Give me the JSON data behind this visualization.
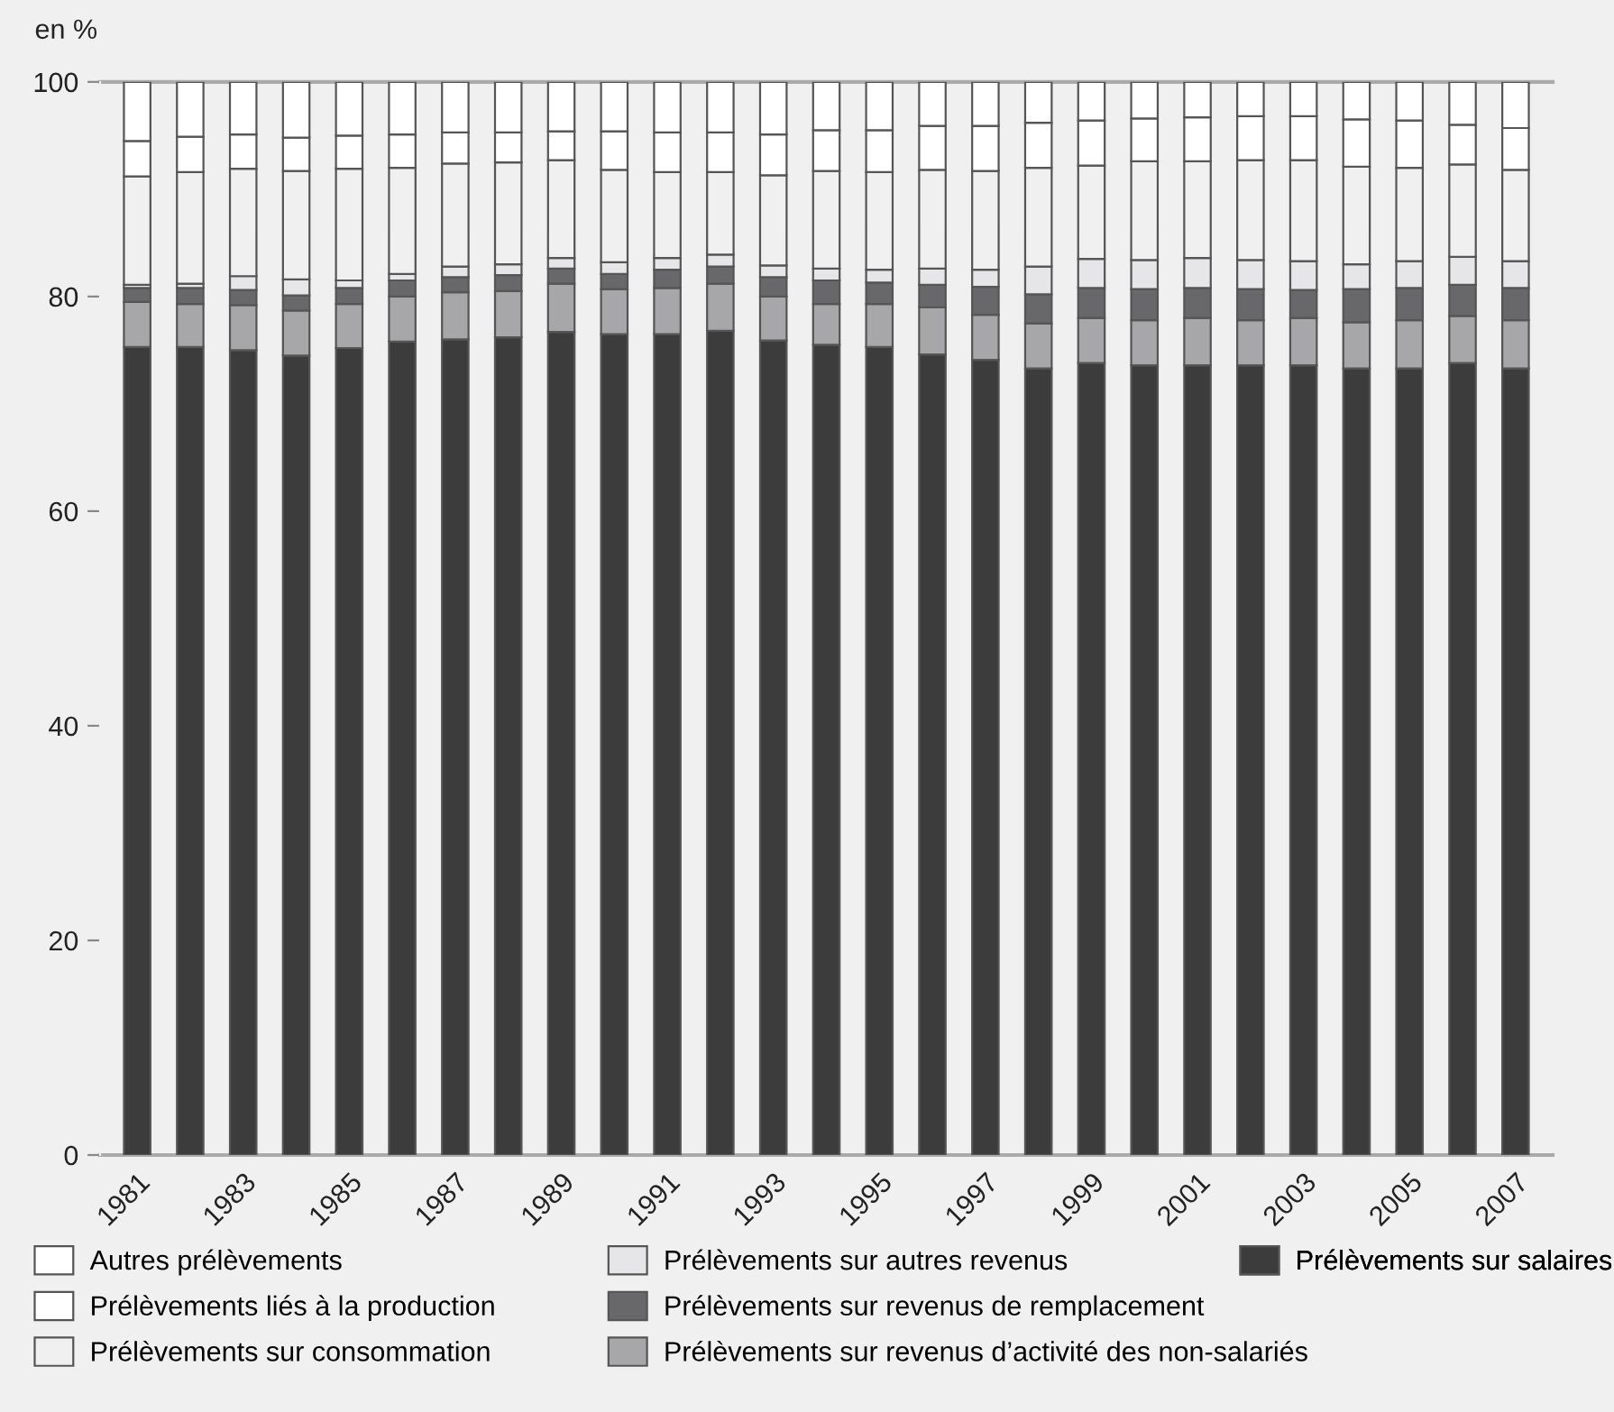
{
  "chart_data": {
    "type": "bar",
    "stacked": true,
    "ylabel": "en %",
    "categories": [
      "1981",
      null,
      "1983",
      null,
      "1985",
      null,
      "1987",
      null,
      "1989",
      null,
      "1991",
      null,
      "1993",
      null,
      "1995",
      null,
      "1997",
      null,
      "1999",
      null,
      "2001",
      null,
      "2003",
      null,
      "2005",
      null,
      "2007"
    ],
    "ylim": [
      0,
      100
    ],
    "yticks": [
      0,
      20,
      40,
      60,
      80,
      100
    ],
    "grid": false,
    "legend": "bottom",
    "series": [
      {
        "name": "Prélèvements sur salaires",
        "color": "#3c3c3c",
        "values": [
          75.3,
          75.3,
          75.0,
          74.5,
          75.2,
          75.8,
          76.0,
          76.2,
          76.7,
          76.5,
          76.5,
          76.8,
          75.9,
          75.5,
          75.3,
          74.6,
          74.1,
          73.3,
          73.8,
          73.6,
          73.6,
          73.6,
          73.6,
          73.3,
          73.3,
          73.8,
          73.3
        ]
      },
      {
        "name": "Prélèvements sur revenus d’activité des non-salariés",
        "color": "#a7a7a9",
        "values": [
          4.2,
          4.0,
          4.2,
          4.2,
          4.1,
          4.2,
          4.4,
          4.3,
          4.5,
          4.2,
          4.3,
          4.4,
          4.1,
          3.8,
          4.0,
          4.4,
          4.2,
          4.2,
          4.2,
          4.2,
          4.4,
          4.2,
          4.4,
          4.3,
          4.5,
          4.4,
          4.5
        ]
      },
      {
        "name": "Prélèvements sur revenus de remplacement",
        "color": "#68686a",
        "values": [
          1.3,
          1.5,
          1.4,
          1.4,
          1.5,
          1.5,
          1.4,
          1.5,
          1.4,
          1.4,
          1.7,
          1.6,
          1.8,
          2.2,
          2.0,
          2.1,
          2.6,
          2.7,
          2.8,
          2.9,
          2.8,
          2.9,
          2.6,
          3.1,
          3.0,
          2.9,
          3.0
        ]
      },
      {
        "name": "Prélèvements sur autres revenus",
        "color": "#e6e6e8",
        "values": [
          0.3,
          0.4,
          1.3,
          1.5,
          0.7,
          0.6,
          1.0,
          1.0,
          1.0,
          1.1,
          1.1,
          1.1,
          1.1,
          1.1,
          1.2,
          1.5,
          1.6,
          2.6,
          2.7,
          2.7,
          2.8,
          2.7,
          2.7,
          2.3,
          2.5,
          2.6,
          2.5
        ]
      },
      {
        "name": "Prélèvements sur consommation",
        "color": "#f0f0f0",
        "values": [
          10.1,
          10.4,
          10.0,
          10.1,
          10.4,
          9.9,
          9.6,
          9.5,
          9.1,
          8.6,
          8.0,
          7.7,
          8.4,
          9.1,
          9.1,
          9.2,
          9.2,
          9.2,
          8.7,
          9.2,
          9.0,
          9.3,
          9.4,
          9.1,
          8.7,
          8.6,
          8.5
        ]
      },
      {
        "name": "Prélèvements liés à la production",
        "color": "#ffffff",
        "values": [
          3.3,
          3.3,
          3.2,
          3.1,
          3.1,
          3.1,
          2.9,
          2.8,
          2.7,
          3.6,
          3.7,
          3.7,
          3.8,
          3.8,
          3.9,
          4.1,
          4.2,
          4.2,
          4.2,
          4.0,
          4.1,
          4.1,
          4.1,
          4.4,
          4.4,
          3.7,
          3.9
        ]
      },
      {
        "name": "Autres prélèvements",
        "color": "#ffffff",
        "values": [
          5.5,
          5.1,
          4.9,
          5.2,
          5.0,
          4.9,
          4.7,
          4.7,
          4.6,
          4.6,
          4.7,
          4.7,
          4.9,
          4.5,
          4.5,
          4.1,
          4.1,
          3.8,
          3.6,
          3.4,
          3.3,
          3.2,
          3.2,
          3.5,
          3.6,
          4.0,
          4.3
        ]
      }
    ]
  }
}
